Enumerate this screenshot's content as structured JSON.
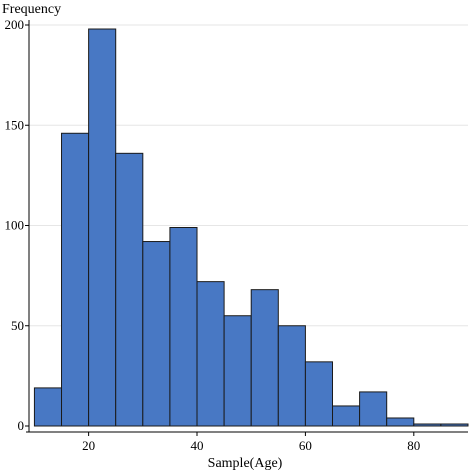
{
  "chart_data": {
    "type": "bar",
    "histogram": true,
    "ylabel": "Frequency",
    "xlabel": "Sample(Age)",
    "bin_width": 5,
    "bins": [
      {
        "start": 10,
        "end": 15,
        "count": 19
      },
      {
        "start": 15,
        "end": 20,
        "count": 146
      },
      {
        "start": 20,
        "end": 25,
        "count": 198
      },
      {
        "start": 25,
        "end": 30,
        "count": 136
      },
      {
        "start": 30,
        "end": 35,
        "count": 92
      },
      {
        "start": 35,
        "end": 40,
        "count": 99
      },
      {
        "start": 40,
        "end": 45,
        "count": 72
      },
      {
        "start": 45,
        "end": 50,
        "count": 55
      },
      {
        "start": 50,
        "end": 55,
        "count": 68
      },
      {
        "start": 55,
        "end": 60,
        "count": 50
      },
      {
        "start": 60,
        "end": 65,
        "count": 32
      },
      {
        "start": 65,
        "end": 70,
        "count": 10
      },
      {
        "start": 70,
        "end": 75,
        "count": 17
      },
      {
        "start": 75,
        "end": 80,
        "count": 4
      },
      {
        "start": 80,
        "end": 85,
        "count": 1
      },
      {
        "start": 85,
        "end": 90,
        "count": 1
      }
    ],
    "xlim": [
      9,
      90
    ],
    "ylim": [
      0,
      200
    ],
    "xticks": [
      "20",
      "40",
      "60",
      "80"
    ],
    "yticks": [
      "0",
      "50",
      "100",
      "150",
      "200"
    ],
    "grid": true,
    "bar_color": "#4878c4",
    "bar_edge_color": "#1a1a1a",
    "grid_color": "#e6e6e6"
  }
}
